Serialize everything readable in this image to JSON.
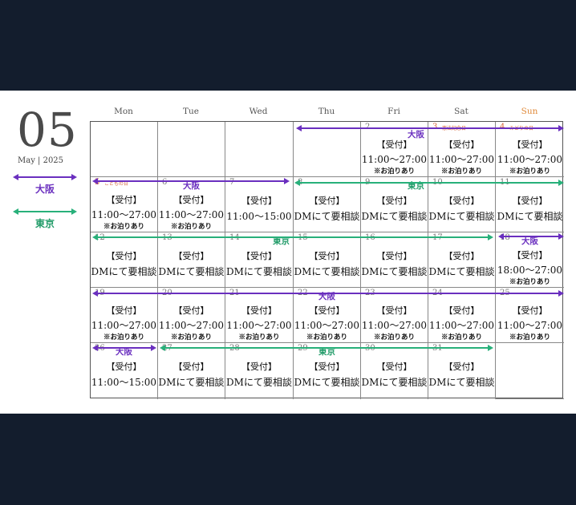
{
  "header": {
    "month_number": "05",
    "month_year": "May | 2025"
  },
  "legend": [
    {
      "label": "大阪",
      "color": "#6a2fbf"
    },
    {
      "label": "東京",
      "color": "#28b07a"
    }
  ],
  "weekdays": [
    "Mon",
    "Tue",
    "Wed",
    "Thu",
    "Fri",
    "Sat",
    "Sun"
  ],
  "colors": {
    "osaka": "#6a2fbf",
    "tokyo": "#28b07a",
    "holiday": "#d4623a",
    "background": "#131d2d"
  },
  "texts": {
    "uketsuke": "【受付】",
    "dm": "DMにて要相談",
    "stay": "※お泊りあり",
    "hours_11_27": "11:00〜27:00",
    "hours_11_15": "11:00〜15:00",
    "hours_18_27": "18:00〜27:00"
  },
  "days": [
    {
      "day": "2",
      "city": "大阪",
      "lines": [
        "【受付】",
        "11:00〜27:00",
        "※お泊りあり"
      ]
    },
    {
      "day": "3",
      "holiday": "憲法記念日",
      "lines": [
        "【受付】",
        "11:00〜27:00",
        "※お泊りあり"
      ]
    },
    {
      "day": "4",
      "holiday": "みどりの日",
      "lines": [
        "【受付】",
        "11:00〜27:00",
        "※お泊りあり"
      ]
    },
    {
      "day": "5",
      "holiday": "こどもの日",
      "lines": [
        "【受付】",
        "11:00〜27:00",
        "※お泊りあり"
      ]
    },
    {
      "day": "6",
      "city": "大阪",
      "lines": [
        "【受付】",
        "11:00〜27:00",
        "※お泊りあり"
      ]
    },
    {
      "day": "7",
      "lines": [
        "【受付】",
        "11:00〜15:00"
      ]
    },
    {
      "day": "8",
      "lines": [
        "【受付】",
        "DMにて要相談"
      ]
    },
    {
      "day": "9",
      "city": "東京",
      "lines": [
        "【受付】",
        "DMにて要相談"
      ]
    },
    {
      "day": "10",
      "lines": [
        "【受付】",
        "DMにて要相談"
      ]
    },
    {
      "day": "11",
      "lines": [
        "【受付】",
        "DMにて要相談"
      ]
    },
    {
      "day": "12",
      "lines": [
        "【受付】",
        "DMにて要相談"
      ]
    },
    {
      "day": "13",
      "lines": [
        "【受付】",
        "DMにて要相談"
      ]
    },
    {
      "day": "14",
      "city": "東京",
      "lines": [
        "【受付】",
        "DMにて要相談"
      ]
    },
    {
      "day": "15",
      "lines": [
        "【受付】",
        "DMにて要相談"
      ]
    },
    {
      "day": "16",
      "lines": [
        "【受付】",
        "DMにて要相談"
      ]
    },
    {
      "day": "17",
      "lines": [
        "【受付】",
        "DMにて要相談"
      ]
    },
    {
      "day": "18",
      "city": "大阪",
      "lines": [
        "【受付】",
        "18:00〜27:00",
        "※お泊りあり"
      ]
    },
    {
      "day": "19",
      "lines": [
        "【受付】",
        "11:00〜27:00",
        "※お泊りあり"
      ]
    },
    {
      "day": "20",
      "lines": [
        "【受付】",
        "11:00〜27:00",
        "※お泊りあり"
      ]
    },
    {
      "day": "21",
      "lines": [
        "【受付】",
        "11:00〜27:00",
        "※お泊りあり"
      ]
    },
    {
      "day": "22",
      "city": "大阪",
      "lines": [
        "【受付】",
        "11:00〜27:00",
        "※お泊りあり"
      ]
    },
    {
      "day": "23",
      "lines": [
        "【受付】",
        "11:00〜27:00",
        "※お泊りあり"
      ]
    },
    {
      "day": "24",
      "lines": [
        "【受付】",
        "11:00〜27:00",
        "※お泊りあり"
      ]
    },
    {
      "day": "25",
      "lines": [
        "【受付】",
        "11:00〜27:00",
        "※お泊りあり"
      ]
    },
    {
      "day": "26",
      "city": "大阪",
      "lines": [
        "【受付】",
        "11:00〜15:00"
      ]
    },
    {
      "day": "27",
      "lines": [
        "【受付】",
        "DMにて要相談"
      ]
    },
    {
      "day": "28",
      "lines": [
        "【受付】",
        "DMにて要相談"
      ]
    },
    {
      "day": "29",
      "city": "東京",
      "lines": [
        "【受付】",
        "DMにて要相談"
      ]
    },
    {
      "day": "30",
      "lines": [
        "【受付】",
        "DMにて要相談"
      ]
    },
    {
      "day": "31",
      "lines": [
        "【受付】",
        "DMにて要相談"
      ]
    }
  ]
}
